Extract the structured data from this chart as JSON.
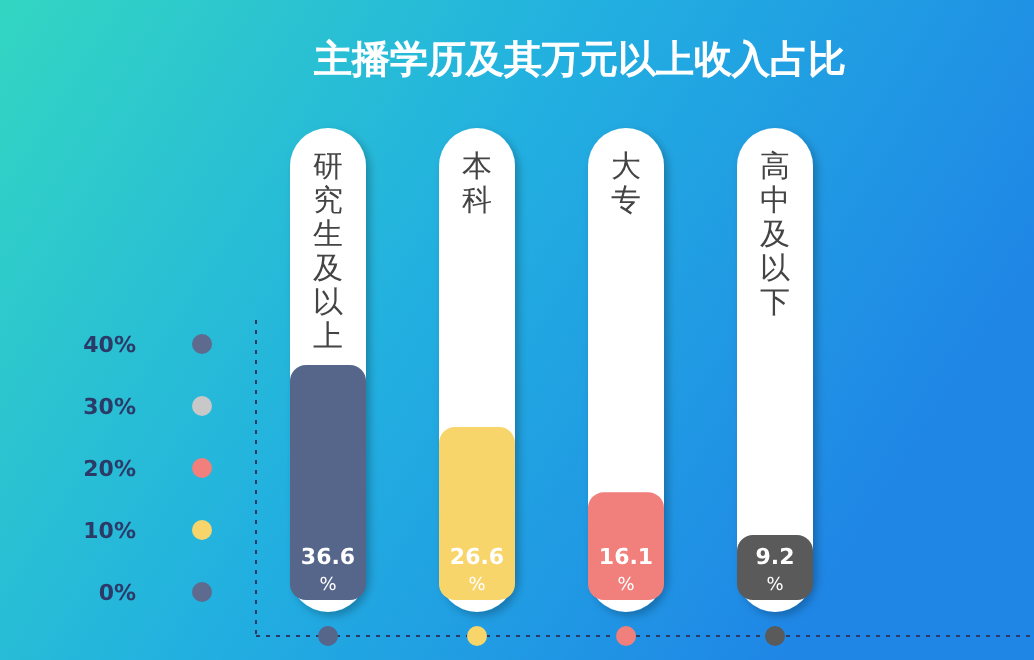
{
  "chart_data": {
    "type": "bar",
    "title": "主播学历及其万元以上收入占比",
    "categories": [
      "研究生及以上",
      "本科",
      "大专",
      "高中及以下"
    ],
    "values": [
      36.6,
      26.6,
      16.1,
      9.2
    ],
    "colors": [
      "#56658a",
      "#f7d56b",
      "#f17f7b",
      "#5a5a5a"
    ],
    "value_labels": [
      "36.6$_{%}$",
      "26.6$_{%}$",
      "16.1$_{%}$",
      "9.2$_{%}$"
    ],
    "ylim": [
      0,
      40
    ],
    "yticks": [
      {
        "value": 0,
        "label": "0%"
      },
      {
        "value": 10,
        "label": "10%"
      },
      {
        "value": 20,
        "label": "20%"
      },
      {
        "value": 30,
        "label": "30%"
      },
      {
        "value": 40,
        "label": "40%"
      }
    ]
  }
}
